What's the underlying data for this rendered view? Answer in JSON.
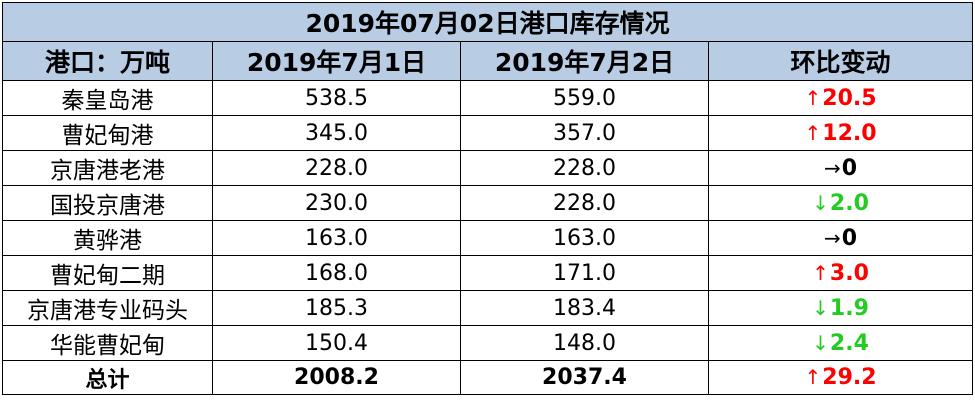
{
  "title": "2019年07月02日港口库存情况",
  "headers": [
    "港口：万吨",
    "2019年7月1日",
    "2019年7月2日",
    "环比变动"
  ],
  "rows": [
    {
      "port": "秦皇岛港",
      "jul1": "538.5",
      "jul2": "559.0",
      "arrow": "↑",
      "change": "20.5",
      "direction": "up"
    },
    {
      "port": "曹妃甸港",
      "jul1": "345.0",
      "jul2": "357.0",
      "arrow": "↑",
      "change": "12.0",
      "direction": "up"
    },
    {
      "port": "京唐港老港",
      "jul1": "228.0",
      "jul2": "228.0",
      "arrow": "→",
      "change": "0",
      "direction": "flat"
    },
    {
      "port": "国投京唐港",
      "jul1": "230.0",
      "jul2": "228.0",
      "arrow": "↓",
      "change": "2.0",
      "direction": "down"
    },
    {
      "port": "黄骅港",
      "jul1": "163.0",
      "jul2": "163.0",
      "arrow": "→",
      "change": "0",
      "direction": "flat"
    },
    {
      "port": "曹妃甸二期",
      "jul1": "168.0",
      "jul2": "171.0",
      "arrow": "↑",
      "change": "3.0",
      "direction": "up"
    },
    {
      "port": "京唐港专业码头",
      "jul1": "185.3",
      "jul2": "183.4",
      "arrow": "↓",
      "change": "1.9",
      "direction": "down"
    },
    {
      "port": "华能曹妃甸",
      "jul1": "150.4",
      "jul2": "148.0",
      "arrow": "↓",
      "change": "2.4",
      "direction": "down"
    }
  ],
  "total": {
    "port": "总计",
    "jul1": "2008.2",
    "jul2": "2037.4",
    "arrow": "↑",
    "change": "29.2",
    "direction": "up"
  },
  "colors": {
    "header_bg": "#b8cce4",
    "up": "#ff0000",
    "down": "#22cc22",
    "flat": "#000000",
    "border": "#000000"
  }
}
